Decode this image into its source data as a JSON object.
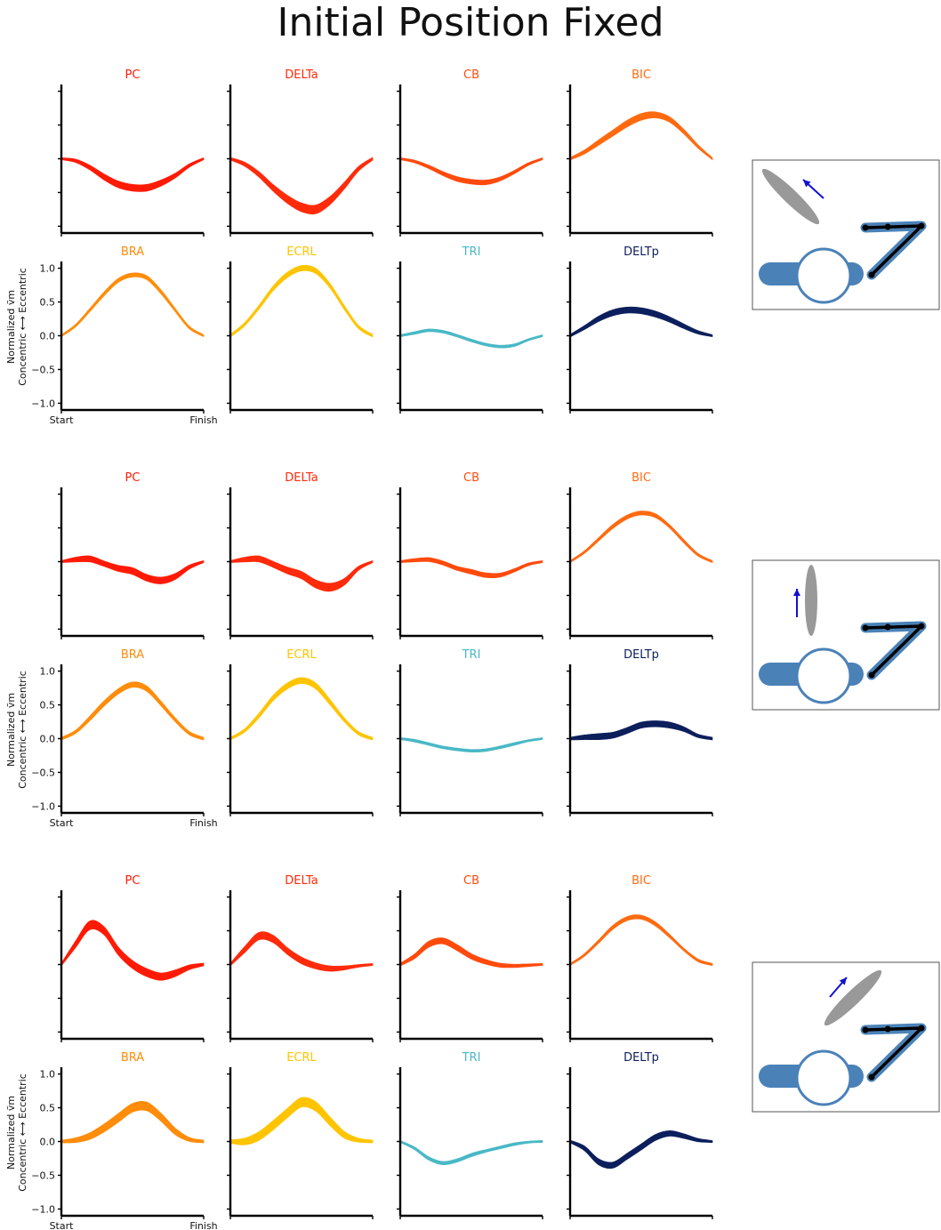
{
  "title": "Initial Position Fixed",
  "muscle_colors": {
    "PC": "#ff1a05",
    "DELTa": "#ff2a0a",
    "CB": "#ff4a0c",
    "BIC": "#ff6a10",
    "BRA": "#ff8c0a",
    "ECRL": "#ffc400",
    "TRI": "#48b8c6",
    "DELTp": "#0c1f5c"
  },
  "chart_data": [
    {
      "type": "area",
      "block": 1,
      "title": "",
      "x_tick_labels": [
        "Start",
        "Finish"
      ],
      "ylabel_lines": [
        "Normalized ṽm",
        "Concentric ⟷ Eccentric"
      ],
      "ylim": [
        -1.1,
        1.1
      ],
      "yticks": [
        1.0,
        0.5,
        0.0,
        -0.5,
        -1.0
      ],
      "ytick_labels": [
        "1.0",
        "0.5",
        "0.0",
        "−0.5",
        "−1.0"
      ],
      "x": [
        0.0,
        0.1,
        0.2,
        0.3,
        0.4,
        0.5,
        0.6,
        0.7,
        0.8,
        0.9,
        1.0
      ],
      "subplots": [
        {
          "label": "PC",
          "mean": [
            0.0,
            -0.03,
            -0.13,
            -0.27,
            -0.38,
            -0.43,
            -0.43,
            -0.36,
            -0.25,
            -0.1,
            0.0
          ],
          "width": [
            0.03,
            0.05,
            0.07,
            0.09,
            0.1,
            0.1,
            0.1,
            0.09,
            0.07,
            0.05,
            0.03
          ]
        },
        {
          "label": "DELTa",
          "mean": [
            0.0,
            -0.08,
            -0.23,
            -0.43,
            -0.6,
            -0.72,
            -0.75,
            -0.62,
            -0.4,
            -0.15,
            0.0
          ],
          "width": [
            0.04,
            0.06,
            0.08,
            0.1,
            0.12,
            0.13,
            0.13,
            0.12,
            0.1,
            0.07,
            0.04
          ]
        },
        {
          "label": "CB",
          "mean": [
            0.0,
            -0.04,
            -0.12,
            -0.22,
            -0.3,
            -0.34,
            -0.35,
            -0.3,
            -0.2,
            -0.08,
            0.0
          ],
          "width": [
            0.03,
            0.04,
            0.05,
            0.06,
            0.07,
            0.07,
            0.07,
            0.06,
            0.05,
            0.04,
            0.03
          ]
        },
        {
          "label": "BIC",
          "mean": [
            0.0,
            0.1,
            0.24,
            0.38,
            0.52,
            0.62,
            0.65,
            0.58,
            0.4,
            0.18,
            0.0
          ],
          "width": [
            0.04,
            0.06,
            0.08,
            0.09,
            0.1,
            0.1,
            0.09,
            0.08,
            0.07,
            0.05,
            0.03
          ]
        },
        {
          "label": "BRA",
          "mean": [
            0.0,
            0.15,
            0.38,
            0.62,
            0.82,
            0.9,
            0.86,
            0.65,
            0.38,
            0.12,
            0.0
          ],
          "width": [
            0.03,
            0.04,
            0.05,
            0.06,
            0.06,
            0.06,
            0.06,
            0.06,
            0.05,
            0.04,
            0.03
          ]
        },
        {
          "label": "ECRL",
          "mean": [
            0.0,
            0.17,
            0.42,
            0.7,
            0.9,
            1.0,
            0.96,
            0.74,
            0.42,
            0.13,
            0.0
          ],
          "width": [
            0.04,
            0.05,
            0.06,
            0.07,
            0.08,
            0.08,
            0.08,
            0.07,
            0.06,
            0.05,
            0.04
          ]
        },
        {
          "label": "TRI",
          "mean": [
            0.0,
            0.04,
            0.08,
            0.06,
            0.0,
            -0.07,
            -0.13,
            -0.16,
            -0.14,
            -0.06,
            0.0
          ],
          "width": [
            0.03,
            0.04,
            0.04,
            0.04,
            0.04,
            0.04,
            0.04,
            0.04,
            0.04,
            0.03,
            0.03
          ]
        },
        {
          "label": "DELTp",
          "mean": [
            0.0,
            0.12,
            0.25,
            0.34,
            0.38,
            0.37,
            0.32,
            0.24,
            0.14,
            0.05,
            0.0
          ],
          "width": [
            0.04,
            0.06,
            0.08,
            0.09,
            0.09,
            0.09,
            0.09,
            0.08,
            0.07,
            0.05,
            0.03
          ]
        }
      ]
    },
    {
      "type": "area",
      "block": 2,
      "title": "",
      "x_tick_labels": [
        "Start",
        "Finish"
      ],
      "ylabel_lines": [
        "Normalized ṽm",
        "Concentric ⟷ Eccentric"
      ],
      "ylim": [
        -1.1,
        1.1
      ],
      "yticks": [
        1.0,
        0.5,
        0.0,
        -0.5,
        -1.0
      ],
      "ytick_labels": [
        "1.0",
        "0.5",
        "0.0",
        "−0.5",
        "−1.0"
      ],
      "x": [
        0.0,
        0.1,
        0.2,
        0.3,
        0.4,
        0.5,
        0.6,
        0.7,
        0.8,
        0.9,
        1.0
      ],
      "subplots": [
        {
          "label": "PC",
          "mean": [
            0.0,
            0.03,
            0.04,
            -0.03,
            -0.1,
            -0.14,
            -0.24,
            -0.28,
            -0.22,
            -0.08,
            0.0
          ],
          "width": [
            0.03,
            0.07,
            0.09,
            0.08,
            0.09,
            0.1,
            0.1,
            0.1,
            0.09,
            0.06,
            0.03
          ]
        },
        {
          "label": "DELTa",
          "mean": [
            0.0,
            0.03,
            0.04,
            -0.04,
            -0.13,
            -0.2,
            -0.33,
            -0.38,
            -0.3,
            -0.1,
            0.0
          ],
          "width": [
            0.03,
            0.07,
            0.09,
            0.09,
            0.1,
            0.11,
            0.12,
            0.12,
            0.1,
            0.06,
            0.03
          ]
        },
        {
          "label": "CB",
          "mean": [
            0.0,
            0.02,
            0.03,
            -0.02,
            -0.1,
            -0.15,
            -0.2,
            -0.2,
            -0.13,
            -0.04,
            0.0
          ],
          "width": [
            0.03,
            0.05,
            0.06,
            0.06,
            0.06,
            0.07,
            0.07,
            0.06,
            0.05,
            0.04,
            0.03
          ]
        },
        {
          "label": "BIC",
          "mean": [
            0.0,
            0.14,
            0.33,
            0.52,
            0.66,
            0.72,
            0.68,
            0.52,
            0.3,
            0.1,
            0.0
          ],
          "width": [
            0.03,
            0.04,
            0.05,
            0.06,
            0.06,
            0.06,
            0.06,
            0.05,
            0.05,
            0.04,
            0.03
          ]
        },
        {
          "label": "BRA",
          "mean": [
            0.0,
            0.1,
            0.3,
            0.52,
            0.7,
            0.8,
            0.74,
            0.52,
            0.28,
            0.08,
            0.0
          ],
          "width": [
            0.04,
            0.05,
            0.07,
            0.08,
            0.08,
            0.08,
            0.08,
            0.07,
            0.06,
            0.05,
            0.04
          ]
        },
        {
          "label": "ECRL",
          "mean": [
            0.0,
            0.12,
            0.34,
            0.6,
            0.78,
            0.86,
            0.78,
            0.54,
            0.28,
            0.08,
            0.0
          ],
          "width": [
            0.04,
            0.05,
            0.07,
            0.08,
            0.09,
            0.09,
            0.09,
            0.08,
            0.06,
            0.05,
            0.04
          ]
        },
        {
          "label": "TRI",
          "mean": [
            0.0,
            -0.03,
            -0.08,
            -0.13,
            -0.16,
            -0.18,
            -0.17,
            -0.13,
            -0.08,
            -0.03,
            0.0
          ],
          "width": [
            0.03,
            0.04,
            0.04,
            0.04,
            0.04,
            0.04,
            0.04,
            0.04,
            0.04,
            0.03,
            0.03
          ]
        },
        {
          "label": "DELTp",
          "mean": [
            0.0,
            0.02,
            0.03,
            0.05,
            0.12,
            0.2,
            0.22,
            0.2,
            0.14,
            0.04,
            0.0
          ],
          "width": [
            0.04,
            0.07,
            0.09,
            0.09,
            0.09,
            0.09,
            0.09,
            0.09,
            0.07,
            0.05,
            0.04
          ]
        }
      ]
    },
    {
      "type": "area",
      "block": 3,
      "title": "",
      "x_tick_labels": [
        "Start",
        "Finish"
      ],
      "ylabel_lines": [
        "Normalized ṽm",
        "Concentric ⟷ Eccentric"
      ],
      "ylim": [
        -1.1,
        1.1
      ],
      "yticks": [
        1.0,
        0.5,
        0.0,
        -0.5,
        -1.0
      ],
      "ytick_labels": [
        "1.0",
        "0.5",
        "0.0",
        "−0.5",
        "−1.0"
      ],
      "x": [
        0.0,
        0.1,
        0.2,
        0.3,
        0.4,
        0.5,
        0.6,
        0.7,
        0.8,
        0.9,
        1.0
      ],
      "subplots": [
        {
          "label": "PC",
          "mean": [
            0.0,
            0.3,
            0.58,
            0.5,
            0.2,
            0.0,
            -0.12,
            -0.18,
            -0.13,
            -0.04,
            0.0
          ],
          "width": [
            0.04,
            0.1,
            0.13,
            0.12,
            0.12,
            0.12,
            0.12,
            0.11,
            0.1,
            0.07,
            0.04
          ]
        },
        {
          "label": "DELTa",
          "mean": [
            0.0,
            0.22,
            0.42,
            0.38,
            0.2,
            0.06,
            -0.02,
            -0.06,
            -0.05,
            -0.02,
            0.0
          ],
          "width": [
            0.04,
            0.09,
            0.11,
            0.11,
            0.1,
            0.1,
            0.09,
            0.08,
            0.06,
            0.04,
            0.03
          ]
        },
        {
          "label": "CB",
          "mean": [
            0.0,
            0.12,
            0.3,
            0.35,
            0.25,
            0.12,
            0.04,
            -0.01,
            -0.02,
            -0.01,
            0.0
          ],
          "width": [
            0.04,
            0.07,
            0.09,
            0.09,
            0.09,
            0.08,
            0.07,
            0.06,
            0.05,
            0.04,
            0.03
          ]
        },
        {
          "label": "BIC",
          "mean": [
            0.0,
            0.14,
            0.34,
            0.55,
            0.68,
            0.7,
            0.6,
            0.42,
            0.22,
            0.06,
            0.0
          ],
          "width": [
            0.03,
            0.04,
            0.05,
            0.06,
            0.06,
            0.06,
            0.06,
            0.05,
            0.04,
            0.04,
            0.03
          ]
        },
        {
          "label": "BRA",
          "mean": [
            0.0,
            0.02,
            0.08,
            0.2,
            0.35,
            0.5,
            0.52,
            0.36,
            0.15,
            0.03,
            0.0
          ],
          "width": [
            0.04,
            0.07,
            0.1,
            0.12,
            0.13,
            0.13,
            0.13,
            0.12,
            0.1,
            0.06,
            0.04
          ]
        },
        {
          "label": "ECRL",
          "mean": [
            0.0,
            0.0,
            0.08,
            0.24,
            0.42,
            0.58,
            0.52,
            0.3,
            0.1,
            0.02,
            0.0
          ],
          "width": [
            0.05,
            0.1,
            0.13,
            0.14,
            0.14,
            0.14,
            0.14,
            0.13,
            0.1,
            0.06,
            0.04
          ]
        },
        {
          "label": "TRI",
          "mean": [
            0.0,
            -0.1,
            -0.25,
            -0.32,
            -0.28,
            -0.2,
            -0.14,
            -0.09,
            -0.04,
            -0.01,
            0.0
          ],
          "width": [
            0.03,
            0.04,
            0.05,
            0.05,
            0.05,
            0.05,
            0.04,
            0.04,
            0.04,
            0.03,
            0.03
          ]
        },
        {
          "label": "DELTp",
          "mean": [
            0.0,
            -0.1,
            -0.3,
            -0.35,
            -0.22,
            -0.08,
            0.06,
            0.12,
            0.08,
            0.02,
            0.0
          ],
          "width": [
            0.04,
            0.07,
            0.09,
            0.09,
            0.09,
            0.09,
            0.09,
            0.08,
            0.07,
            0.05,
            0.03
          ]
        }
      ]
    }
  ],
  "arm_insets": [
    {
      "block": 1,
      "hand_direction": "up-left",
      "arm_color": "#4a82b8",
      "link_color": "#000000",
      "hand_color": "#999999",
      "arrow_color": "#1010d0"
    },
    {
      "block": 2,
      "hand_direction": "up",
      "arm_color": "#4a82b8",
      "link_color": "#000000",
      "hand_color": "#999999",
      "arrow_color": "#1010d0"
    },
    {
      "block": 3,
      "hand_direction": "up-right",
      "arm_color": "#4a82b8",
      "link_color": "#000000",
      "hand_color": "#999999",
      "arrow_color": "#1010d0"
    }
  ]
}
